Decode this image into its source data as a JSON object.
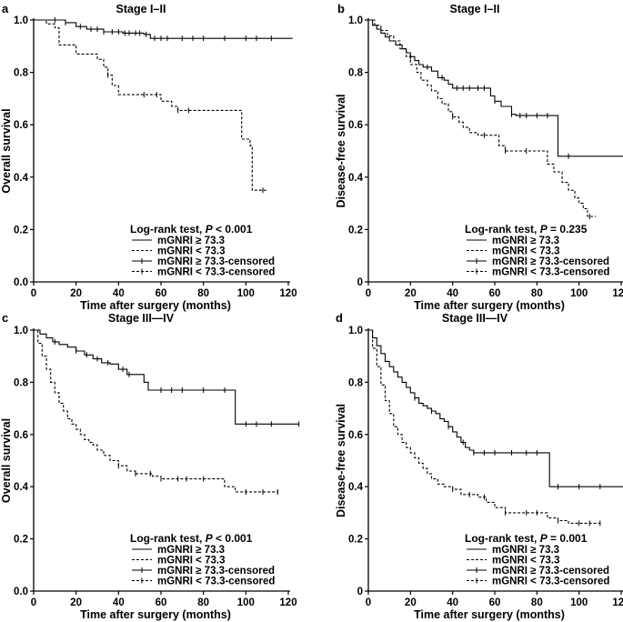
{
  "chart_data": [
    {
      "type": "line",
      "panel_label": "a",
      "title": "Stage I–II",
      "xlabel": "Time after surgery (months)",
      "ylabel": "Overall survival",
      "xlim": [
        0,
        120
      ],
      "ylim": [
        0,
        1.0
      ],
      "xticks": [
        0,
        20,
        40,
        60,
        80,
        100,
        120
      ],
      "yticks": [
        0.0,
        0.2,
        0.4,
        0.6,
        0.8,
        1.0
      ],
      "yticks_text": [
        "0.0",
        "0.2",
        "0.4",
        "0.6",
        "0.8",
        "1.0"
      ],
      "legend_title_prefix": "Log-rank test, ",
      "legend_title_p": "P",
      "legend_title_suffix": " < 0.001",
      "legend": [
        "mGNRI ≥ 73.3",
        "mGNRI < 73.3",
        "mGNRI ≥ 73.3-censored",
        "mGNRI < 73.3-censored"
      ],
      "series": [
        {
          "name": "mGNRI ≥ 73.3",
          "style": "solid",
          "x": [
            0,
            10,
            15,
            18,
            20,
            25,
            33,
            37,
            40,
            42,
            45,
            50,
            52,
            55,
            63,
            70,
            80,
            95,
            105,
            112,
            122
          ],
          "y": [
            1.0,
            1.0,
            0.99,
            0.99,
            0.975,
            0.965,
            0.955,
            0.955,
            0.955,
            0.95,
            0.95,
            0.95,
            0.945,
            0.93,
            0.93,
            0.93,
            0.93,
            0.93,
            0.93,
            0.93,
            0.93
          ],
          "censored_x": [
            10,
            15,
            22,
            27,
            30,
            33,
            37,
            40,
            43,
            45,
            48,
            50,
            53,
            57,
            60,
            63,
            70,
            75,
            80,
            90,
            100,
            105,
            112
          ]
        },
        {
          "name": "mGNRI < 73.3",
          "style": "dashed",
          "x": [
            0,
            6,
            10,
            12,
            20,
            24,
            30,
            33,
            35,
            37,
            40,
            58,
            60,
            62,
            65,
            68,
            80,
            98,
            100,
            102,
            103,
            110
          ],
          "y": [
            1.0,
            0.985,
            0.97,
            0.905,
            0.87,
            0.87,
            0.85,
            0.82,
            0.79,
            0.75,
            0.715,
            0.715,
            0.69,
            0.69,
            0.67,
            0.655,
            0.655,
            0.545,
            0.545,
            0.52,
            0.35,
            0.35
          ],
          "censored_x": [
            35,
            52,
            58,
            68,
            73,
            108
          ]
        }
      ]
    },
    {
      "type": "line",
      "panel_label": "b",
      "title": "Stage I–II",
      "xlabel": "Time after surgery (months)",
      "ylabel": "Disease-free survival",
      "xlim": [
        0,
        120
      ],
      "ylim": [
        0,
        1.0
      ],
      "xticks": [
        0,
        20,
        40,
        60,
        80,
        100,
        120
      ],
      "yticks": [
        0.0,
        0.2,
        0.4,
        0.6,
        0.8,
        1.0
      ],
      "yticks_text": [
        "0",
        "0.2",
        "0.4",
        "0.6",
        "0.8",
        "1.0"
      ],
      "legend_title_prefix": "Log-rank test, ",
      "legend_title_p": "P",
      "legend_title_suffix": " = 0.235",
      "legend": [
        "mGNRI ≥ 73.3",
        "mGNRI < 73.3",
        "mGNRI ≥ 73.3-censored",
        "mGNRI < 73.3-censored"
      ],
      "series": [
        {
          "name": "mGNRI ≥ 73.3",
          "style": "solid",
          "x": [
            0,
            2,
            4,
            6,
            8,
            10,
            13,
            16,
            18,
            20,
            22,
            24,
            26,
            28,
            30,
            33,
            36,
            38,
            40,
            45,
            50,
            55,
            58,
            60,
            63,
            65,
            68,
            70,
            75,
            80,
            85,
            88,
            90,
            95,
            122
          ],
          "y": [
            1.0,
            0.98,
            0.965,
            0.95,
            0.935,
            0.92,
            0.905,
            0.89,
            0.875,
            0.86,
            0.845,
            0.83,
            0.82,
            0.82,
            0.805,
            0.78,
            0.77,
            0.755,
            0.74,
            0.74,
            0.74,
            0.74,
            0.71,
            0.69,
            0.67,
            0.67,
            0.64,
            0.635,
            0.635,
            0.635,
            0.635,
            0.635,
            0.48,
            0.48,
            0.48
          ],
          "censored_x": [
            20,
            28,
            35,
            42,
            45,
            48,
            52,
            55,
            60,
            68,
            72,
            75,
            80,
            85,
            95,
            122
          ]
        },
        {
          "name": "mGNRI < 73.3",
          "style": "dashed",
          "x": [
            0,
            3,
            6,
            9,
            12,
            15,
            18,
            20,
            23,
            25,
            28,
            30,
            33,
            35,
            38,
            40,
            43,
            45,
            48,
            52,
            55,
            58,
            62,
            65,
            68,
            75,
            82,
            85,
            88,
            92,
            95,
            98,
            100,
            102,
            104,
            108
          ],
          "y": [
            1.0,
            0.98,
            0.96,
            0.94,
            0.92,
            0.89,
            0.86,
            0.83,
            0.8,
            0.77,
            0.75,
            0.73,
            0.7,
            0.68,
            0.65,
            0.63,
            0.61,
            0.59,
            0.57,
            0.56,
            0.56,
            0.56,
            0.52,
            0.5,
            0.5,
            0.5,
            0.5,
            0.45,
            0.42,
            0.38,
            0.35,
            0.32,
            0.3,
            0.28,
            0.25,
            0.25
          ],
          "censored_x": [
            40,
            55,
            65,
            75,
            105
          ]
        }
      ]
    },
    {
      "type": "line",
      "panel_label": "c",
      "title": "Stage III—IV",
      "xlabel": "Time after surgery (months)",
      "ylabel": "Overall survival",
      "xlim": [
        0,
        120
      ],
      "ylim": [
        0,
        1.0
      ],
      "xticks": [
        0,
        20,
        40,
        60,
        80,
        100,
        120
      ],
      "yticks": [
        0.0,
        0.2,
        0.4,
        0.6,
        0.8,
        1.0
      ],
      "yticks_text": [
        "0.0",
        "0.2",
        "0.4",
        "0.6",
        "0.8",
        "1.0"
      ],
      "legend_title_prefix": "Log-rank test, ",
      "legend_title_p": "P",
      "legend_title_suffix": " < 0.001",
      "legend": [
        "mGNRI ≥ 73.3",
        "mGNRI < 73.3",
        "mGNRI ≥ 73.3-censored",
        "mGNRI < 73.3-censored"
      ],
      "series": [
        {
          "name": "mGNRI ≥ 73.3",
          "style": "solid",
          "x": [
            0,
            3,
            6,
            9,
            12,
            16,
            20,
            24,
            28,
            32,
            36,
            40,
            44,
            48,
            52,
            54,
            56,
            60,
            70,
            80,
            90,
            93,
            95,
            100,
            110,
            125
          ],
          "y": [
            1.0,
            0.985,
            0.97,
            0.955,
            0.945,
            0.935,
            0.92,
            0.905,
            0.89,
            0.875,
            0.87,
            0.85,
            0.83,
            0.83,
            0.8,
            0.77,
            0.77,
            0.77,
            0.77,
            0.77,
            0.77,
            0.77,
            0.64,
            0.64,
            0.64,
            0.64
          ],
          "censored_x": [
            10,
            20,
            25,
            30,
            35,
            42,
            45,
            60,
            65,
            70,
            80,
            90,
            100,
            105,
            112,
            125
          ]
        },
        {
          "name": "mGNRI < 73.3",
          "style": "dashed",
          "x": [
            0,
            2,
            4,
            6,
            8,
            10,
            12,
            14,
            16,
            18,
            20,
            22,
            24,
            26,
            28,
            30,
            33,
            36,
            40,
            44,
            48,
            52,
            56,
            60,
            65,
            70,
            80,
            90,
            95,
            100,
            110,
            115
          ],
          "y": [
            1.0,
            0.95,
            0.9,
            0.85,
            0.8,
            0.76,
            0.72,
            0.69,
            0.66,
            0.64,
            0.62,
            0.6,
            0.58,
            0.57,
            0.56,
            0.54,
            0.52,
            0.5,
            0.48,
            0.46,
            0.45,
            0.45,
            0.44,
            0.43,
            0.43,
            0.43,
            0.43,
            0.4,
            0.38,
            0.38,
            0.38,
            0.38
          ],
          "censored_x": [
            40,
            48,
            55,
            60,
            68,
            72,
            80,
            100,
            108,
            115
          ]
        }
      ]
    },
    {
      "type": "line",
      "panel_label": "d",
      "title": "Stage III—IV",
      "xlabel": "Time after surgery (months)",
      "ylabel": "Disease-free survival",
      "xlim": [
        0,
        120
      ],
      "ylim": [
        0,
        1.0
      ],
      "xticks": [
        0,
        20,
        40,
        60,
        80,
        100,
        120
      ],
      "yticks": [
        0.0,
        0.2,
        0.4,
        0.6,
        0.8,
        1.0
      ],
      "yticks_text": [
        "0",
        "0.2",
        "0.4",
        "0.6",
        "0.8",
        "1.0"
      ],
      "legend_title_prefix": "Log-rank test, ",
      "legend_title_p": "P",
      "legend_title_suffix": " = 0.001",
      "legend": [
        "mGNRI ≥ 73.3",
        "mGNRI < 73.3",
        "mGNRI ≥ 73.3-censored",
        "mGNRI < 73.3-censored"
      ],
      "series": [
        {
          "name": "mGNRI ≥ 73.3",
          "style": "solid",
          "x": [
            0,
            2,
            4,
            6,
            8,
            10,
            12,
            14,
            16,
            18,
            20,
            22,
            24,
            26,
            28,
            30,
            32,
            34,
            36,
            38,
            40,
            42,
            44,
            46,
            48,
            50,
            52,
            60,
            70,
            80,
            84,
            86,
            90,
            100,
            110,
            122
          ],
          "y": [
            1.0,
            0.97,
            0.94,
            0.91,
            0.88,
            0.86,
            0.84,
            0.82,
            0.8,
            0.78,
            0.76,
            0.74,
            0.72,
            0.71,
            0.7,
            0.69,
            0.68,
            0.66,
            0.65,
            0.63,
            0.61,
            0.59,
            0.57,
            0.55,
            0.54,
            0.53,
            0.53,
            0.53,
            0.53,
            0.53,
            0.53,
            0.4,
            0.4,
            0.4,
            0.4,
            0.4
          ],
          "censored_x": [
            22,
            30,
            38,
            45,
            50,
            55,
            60,
            68,
            75,
            80,
            90,
            100,
            110,
            122
          ]
        },
        {
          "name": "mGNRI < 73.3",
          "style": "dashed",
          "x": [
            0,
            2,
            4,
            6,
            8,
            10,
            12,
            14,
            16,
            18,
            20,
            22,
            24,
            26,
            28,
            30,
            33,
            36,
            40,
            44,
            48,
            52,
            56,
            60,
            65,
            70,
            75,
            80,
            85,
            90,
            95,
            100,
            110
          ],
          "y": [
            1.0,
            0.93,
            0.86,
            0.79,
            0.73,
            0.68,
            0.63,
            0.6,
            0.57,
            0.55,
            0.53,
            0.51,
            0.49,
            0.47,
            0.45,
            0.43,
            0.41,
            0.4,
            0.39,
            0.37,
            0.37,
            0.36,
            0.34,
            0.32,
            0.3,
            0.3,
            0.3,
            0.3,
            0.28,
            0.27,
            0.26,
            0.26,
            0.26
          ],
          "censored_x": [
            40,
            48,
            55,
            65,
            75,
            80,
            90,
            100,
            105,
            110
          ]
        }
      ]
    }
  ]
}
